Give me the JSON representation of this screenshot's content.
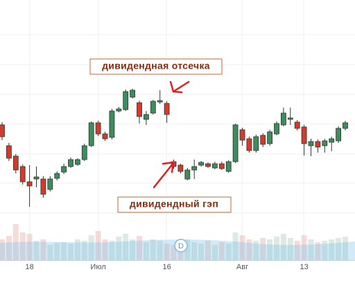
{
  "chart_data": {
    "type": "candlestick",
    "categories": [
      null,
      null,
      null,
      null,
      "18",
      null,
      null,
      null,
      null,
      null,
      null,
      null,
      null,
      null,
      "Июл",
      null,
      null,
      null,
      null,
      null,
      null,
      null,
      null,
      null,
      "16",
      null,
      null,
      null,
      null,
      null,
      null,
      null,
      null,
      null,
      null,
      "Авг",
      null,
      null,
      null,
      null,
      null,
      null,
      null,
      null,
      "13",
      null,
      null,
      null,
      null,
      null,
      null
    ],
    "open": [
      220,
      190,
      175,
      160,
      138,
      142,
      142,
      127,
      143,
      152,
      160,
      163,
      170,
      190,
      223,
      207,
      202,
      240,
      242,
      260,
      252,
      228,
      237,
      253,
      251,
      167,
      162,
      142,
      155,
      162,
      164,
      158,
      164,
      153,
      167,
      213,
      200,
      183,
      205,
      193,
      207,
      220,
      228,
      224,
      217,
      190,
      196,
      190,
      195,
      197,
      215
    ],
    "high": [
      224,
      194,
      178,
      163,
      162,
      160,
      146,
      146,
      153,
      164,
      173,
      172,
      193,
      225,
      226,
      210,
      243,
      246,
      271,
      272,
      255,
      240,
      256,
      270,
      254,
      170,
      164,
      158,
      170,
      168,
      166,
      167,
      167,
      169,
      222,
      216,
      203,
      206,
      208,
      213,
      225,
      245,
      245,
      227,
      220,
      200,
      199,
      200,
      203,
      218,
      226
    ],
    "low": [
      198,
      168,
      150,
      134,
      102,
      130,
      115,
      124,
      140,
      149,
      158,
      161,
      168,
      188,
      204,
      197,
      199,
      238,
      240,
      258,
      222,
      220,
      235,
      250,
      223,
      157,
      150,
      140,
      142,
      160,
      158,
      156,
      155,
      151,
      165,
      190,
      180,
      180,
      188,
      190,
      205,
      218,
      220,
      212,
      176,
      175,
      180,
      180,
      182,
      194,
      212
    ],
    "close": [
      203,
      172,
      155,
      138,
      132,
      145,
      120,
      142,
      150,
      160,
      170,
      170,
      190,
      223,
      207,
      200,
      240,
      243,
      268,
      270,
      232,
      235,
      254,
      255,
      235,
      160,
      153,
      155,
      160,
      166,
      160,
      164,
      157,
      167,
      220,
      198,
      183,
      203,
      192,
      210,
      222,
      237,
      230,
      215,
      193,
      196,
      188,
      197,
      200,
      215,
      223
    ],
    "volume": [
      30,
      35,
      52,
      40,
      38,
      28,
      30,
      22,
      25,
      26,
      24,
      30,
      28,
      36,
      42,
      30,
      28,
      34,
      38,
      30,
      35,
      26,
      30,
      28,
      24,
      22,
      25,
      30,
      26,
      24,
      28,
      22,
      26,
      24,
      40,
      36,
      30,
      28,
      32,
      30,
      34,
      38,
      32,
      28,
      36,
      30,
      26,
      28,
      30,
      32,
      34
    ],
    "up_color": "#3c8c5e",
    "down_color": "#cf3b2c",
    "ylim": [
      25,
      400
    ],
    "annotations": [
      "дивидендная отсечка",
      "дивидендный гэп"
    ],
    "marker_label": "D"
  }
}
